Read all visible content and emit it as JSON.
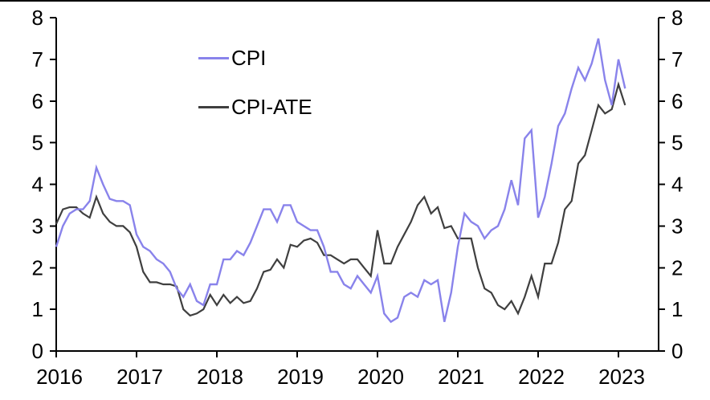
{
  "chart_data": {
    "type": "line",
    "title": "",
    "x_axis": {
      "tick_labels": [
        "2016",
        "2017",
        "2018",
        "2019",
        "2020",
        "2021",
        "2022",
        "2023"
      ],
      "start": "2016-01",
      "end": "2023-02",
      "frequency": "monthly"
    },
    "y_axis": {
      "ticks": [
        "0",
        "1",
        "2",
        "3",
        "4",
        "5",
        "6",
        "7",
        "8"
      ],
      "range": [
        0,
        8
      ],
      "sides": "both"
    },
    "grid": false,
    "legend": {
      "position": "inside-top-left"
    },
    "series": [
      {
        "name": "CPI",
        "color": "#8983EB",
        "values": [
          2.5,
          3.0,
          3.3,
          3.4,
          3.4,
          3.6,
          4.4,
          4.0,
          3.65,
          3.6,
          3.6,
          3.5,
          2.8,
          2.5,
          2.4,
          2.2,
          2.1,
          1.9,
          1.5,
          1.3,
          1.6,
          1.2,
          1.1,
          1.6,
          1.6,
          2.2,
          2.2,
          2.4,
          2.3,
          2.6,
          3.0,
          3.4,
          3.4,
          3.1,
          3.5,
          3.5,
          3.1,
          3.0,
          2.9,
          2.9,
          2.5,
          1.9,
          1.9,
          1.6,
          1.5,
          1.8,
          1.6,
          1.4,
          1.8,
          0.9,
          0.7,
          0.8,
          1.3,
          1.4,
          1.3,
          1.7,
          1.6,
          1.7,
          0.7,
          1.4,
          2.5,
          3.3,
          3.1,
          3.0,
          2.7,
          2.9,
          3.0,
          3.4,
          4.1,
          3.5,
          5.1,
          5.3,
          3.2,
          3.7,
          4.5,
          5.4,
          5.7,
          6.3,
          6.8,
          6.5,
          6.9,
          7.5,
          6.5,
          5.9,
          7.0,
          6.3
        ]
      },
      {
        "name": "CPI-ATE",
        "color": "#3F3F3F",
        "values": [
          3.05,
          3.4,
          3.45,
          3.45,
          3.3,
          3.2,
          3.7,
          3.3,
          3.1,
          3.0,
          3.0,
          2.85,
          2.5,
          1.9,
          1.65,
          1.65,
          1.6,
          1.6,
          1.55,
          1.0,
          0.85,
          0.9,
          1.0,
          1.35,
          1.1,
          1.35,
          1.15,
          1.3,
          1.15,
          1.2,
          1.5,
          1.9,
          1.95,
          2.2,
          2.0,
          2.55,
          2.5,
          2.65,
          2.7,
          2.6,
          2.3,
          2.3,
          2.2,
          2.1,
          2.2,
          2.2,
          2.0,
          1.8,
          2.9,
          2.1,
          2.1,
          2.5,
          2.8,
          3.1,
          3.5,
          3.7,
          3.3,
          3.45,
          2.95,
          3.0,
          2.7,
          2.7,
          2.7,
          2.0,
          1.5,
          1.4,
          1.1,
          1.0,
          1.2,
          0.9,
          1.3,
          1.8,
          1.3,
          2.1,
          2.1,
          2.6,
          3.4,
          3.6,
          4.5,
          4.7,
          5.3,
          5.9,
          5.7,
          5.8,
          6.4,
          5.9
        ]
      }
    ]
  },
  "colors": {
    "axis": "#000000",
    "background": "#FFFFFF",
    "top_border": "#000000"
  }
}
